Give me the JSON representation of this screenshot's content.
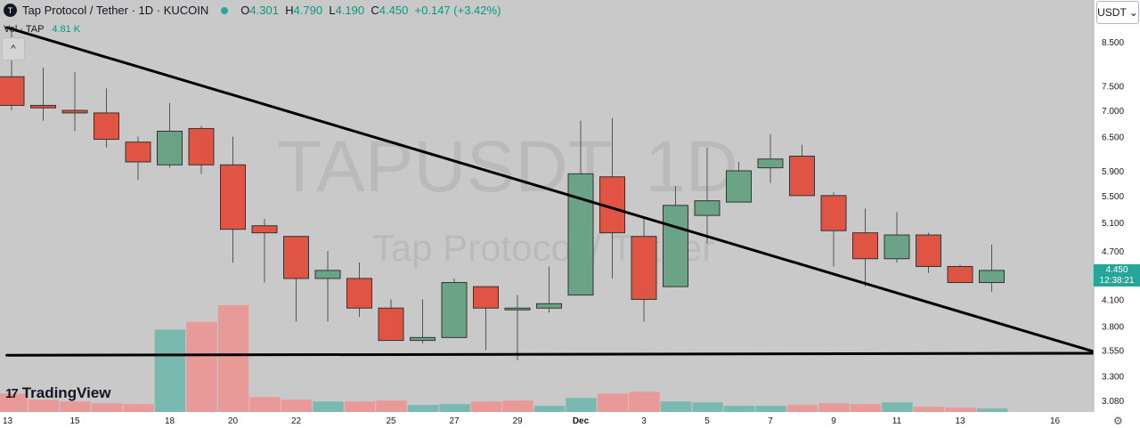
{
  "header": {
    "symbol_logo": "T",
    "title": "Tap Protocol / Tether · 1D · KUCOIN",
    "ohlc": [
      {
        "k": "O",
        "v": "4.301"
      },
      {
        "k": "H",
        "v": "4.790"
      },
      {
        "k": "L",
        "v": "4.190"
      },
      {
        "k": "C",
        "v": "4.450"
      }
    ],
    "change": "+0.147 (+3.42%)",
    "volume_label": "Vol · TAP",
    "volume_value": "4.81 K",
    "collapse_icon": "chevron-up-icon",
    "currency": "USDT"
  },
  "watermark": {
    "symbol": "TAPUSDT, 1D",
    "name": "Tap Protocol / Tether"
  },
  "branding": "TradingView",
  "last_price": {
    "price": "4.450",
    "countdown": "12:38:21"
  },
  "colors": {
    "up": "#6ba386",
    "down": "#e05443",
    "up_volume": "#79b9b0",
    "down_volume": "#e89a98",
    "background": "#c9c9c9"
  },
  "chart_data": {
    "type": "candlestick",
    "title": "Tap Protocol / Tether · 1D · KUCOIN",
    "y_axis": {
      "scale": "log",
      "ticks": [
        "8.500",
        "7.500",
        "7.000",
        "6.500",
        "5.900",
        "5.500",
        "5.100",
        "4.700",
        "4.100",
        "3.800",
        "3.550",
        "3.300",
        "3.080"
      ],
      "range": [
        3.0,
        8.9
      ]
    },
    "x_axis": {
      "tick_labels": [
        "13",
        "15",
        "18",
        "20",
        "22",
        "25",
        "27",
        "29",
        "Dec",
        "3",
        "5",
        "7",
        "9",
        "11",
        "13",
        "16"
      ]
    },
    "candles": [
      {
        "o": 7.7,
        "h": 8.75,
        "l": 7.0,
        "c": 7.1
      },
      {
        "o": 7.1,
        "h": 7.9,
        "l": 6.8,
        "c": 7.05
      },
      {
        "o": 7.0,
        "h": 7.8,
        "l": 6.6,
        "c": 6.95
      },
      {
        "o": 6.95,
        "h": 7.45,
        "l": 6.3,
        "c": 6.45
      },
      {
        "o": 6.4,
        "h": 6.5,
        "l": 5.75,
        "c": 6.05
      },
      {
        "o": 6.0,
        "h": 7.15,
        "l": 5.95,
        "c": 6.6
      },
      {
        "o": 6.65,
        "h": 6.7,
        "l": 5.85,
        "c": 6.0
      },
      {
        "o": 6.0,
        "h": 6.5,
        "l": 4.55,
        "c": 5.0
      },
      {
        "o": 5.05,
        "h": 5.15,
        "l": 4.3,
        "c": 4.95
      },
      {
        "o": 4.9,
        "h": 4.9,
        "l": 3.85,
        "c": 4.35
      },
      {
        "o": 4.35,
        "h": 4.7,
        "l": 3.85,
        "c": 4.45
      },
      {
        "o": 4.35,
        "h": 4.55,
        "l": 3.9,
        "c": 4.0
      },
      {
        "o": 4.0,
        "h": 4.1,
        "l": 3.65,
        "c": 3.65
      },
      {
        "o": 3.65,
        "h": 4.1,
        "l": 3.62,
        "c": 3.68
      },
      {
        "o": 3.68,
        "h": 4.35,
        "l": 3.68,
        "c": 4.3
      },
      {
        "o": 4.25,
        "h": 4.25,
        "l": 3.55,
        "c": 4.0
      },
      {
        "o": 3.98,
        "h": 4.15,
        "l": 3.45,
        "c": 4.0
      },
      {
        "o": 4.0,
        "h": 4.5,
        "l": 3.95,
        "c": 4.05
      },
      {
        "o": 4.15,
        "h": 6.8,
        "l": 4.15,
        "c": 5.85
      },
      {
        "o": 5.8,
        "h": 6.85,
        "l": 4.35,
        "c": 4.95
      },
      {
        "o": 4.9,
        "h": 5.15,
        "l": 3.85,
        "c": 4.1
      },
      {
        "o": 4.25,
        "h": 5.65,
        "l": 4.25,
        "c": 5.35
      },
      {
        "o": 5.2,
        "h": 6.3,
        "l": 4.8,
        "c": 5.42
      },
      {
        "o": 5.4,
        "h": 6.05,
        "l": 5.4,
        "c": 5.9
      },
      {
        "o": 5.95,
        "h": 6.55,
        "l": 5.7,
        "c": 6.1
      },
      {
        "o": 6.15,
        "h": 6.35,
        "l": 5.5,
        "c": 5.5
      },
      {
        "o": 5.5,
        "h": 5.55,
        "l": 4.5,
        "c": 4.98
      },
      {
        "o": 4.95,
        "h": 5.3,
        "l": 4.25,
        "c": 4.6
      },
      {
        "o": 4.6,
        "h": 5.25,
        "l": 4.55,
        "c": 4.92
      },
      {
        "o": 4.92,
        "h": 4.95,
        "l": 4.42,
        "c": 4.5
      },
      {
        "o": 4.5,
        "h": 4.52,
        "l": 4.3,
        "c": 4.3
      },
      {
        "o": 4.3,
        "h": 4.79,
        "l": 4.19,
        "c": 4.45
      }
    ],
    "volume": [
      2.1,
      1.4,
      1.2,
      1.0,
      0.9,
      9.4,
      10.3,
      12.2,
      1.7,
      1.4,
      1.2,
      1.2,
      1.3,
      0.8,
      0.9,
      1.2,
      1.3,
      0.7,
      1.6,
      2.1,
      2.3,
      1.2,
      1.1,
      0.7,
      0.7,
      0.8,
      1.0,
      0.9,
      1.1,
      0.6,
      0.5,
      0.4
    ],
    "volume_is_up": [
      false,
      false,
      false,
      false,
      false,
      true,
      false,
      false,
      false,
      false,
      true,
      false,
      false,
      true,
      true,
      false,
      false,
      true,
      true,
      false,
      false,
      true,
      true,
      true,
      true,
      false,
      false,
      false,
      true,
      false,
      false,
      true
    ],
    "trendlines": [
      {
        "from": {
          "index": -0.15,
          "price": 8.85
        },
        "to": {
          "index": 34.4,
          "price": 3.52
        }
      },
      {
        "from": {
          "index": -0.15,
          "price": 3.5
        },
        "to": {
          "index": 34.4,
          "price": 3.52
        }
      }
    ]
  }
}
